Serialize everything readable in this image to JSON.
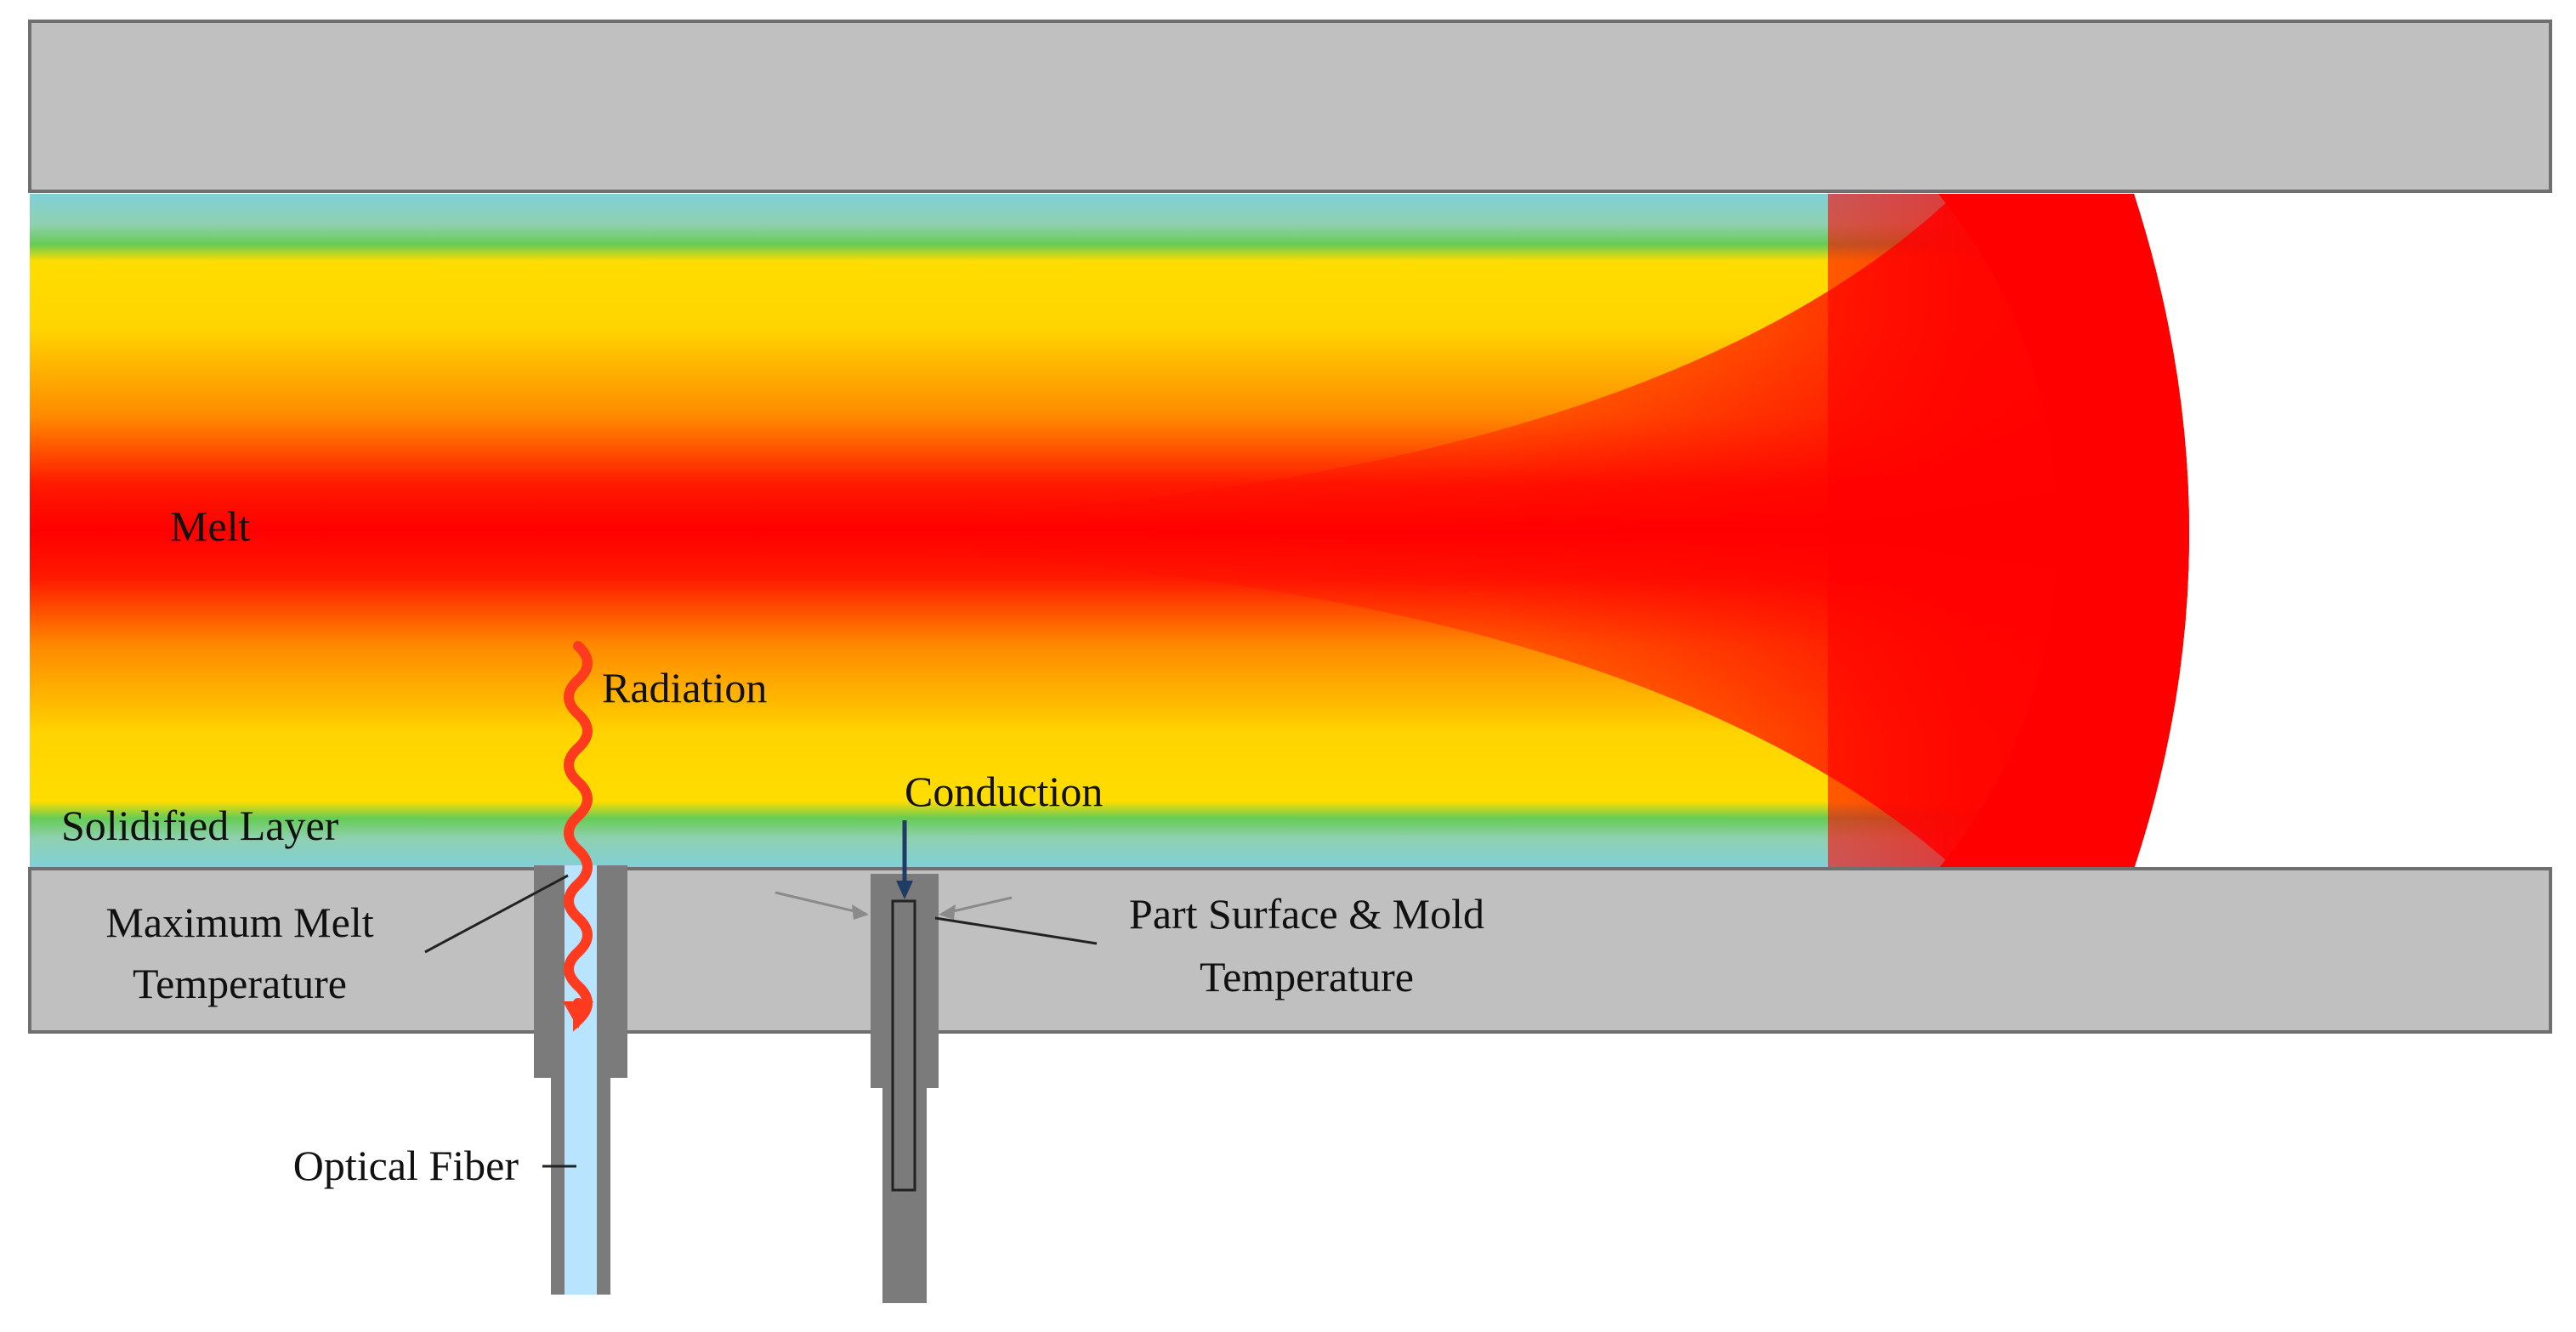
{
  "labels": {
    "melt": "Melt",
    "radiation": "Radiation",
    "conduction": "Conduction",
    "solidified_layer": "Solidified Layer",
    "max_melt_temp_line1": "Maximum Melt",
    "max_melt_temp_line2": "Temperature",
    "part_surface_line1": "Part Surface & Mold",
    "part_surface_line2": "Temperature",
    "optical_fiber": "Optical Fiber"
  },
  "colors": {
    "mold_plate": "#c0c0c0",
    "mold_plate_stroke": "#6f6f6f",
    "sensor_body": "#7b7b7b",
    "optical_fiber": "#b8e4ff",
    "melt_hot": "#ff0000",
    "melt_warm": "#ffd400",
    "solidified": "#66cc55",
    "wall_cool": "#7fd0d8",
    "radiation_arrow": "#ff3b1f",
    "conduction_arrow": "#1f3b66"
  }
}
